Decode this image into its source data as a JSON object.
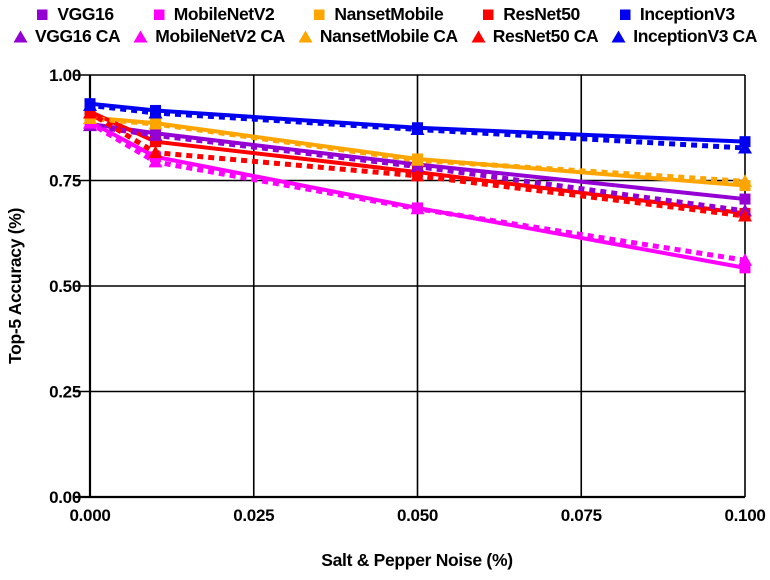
{
  "chart_data": {
    "type": "line",
    "title": "",
    "xlabel": "Salt & Pepper Noise (%)",
    "ylabel": "Top-5 Accuracy  (%)",
    "x": [
      0.0,
      0.01,
      0.05,
      0.1
    ],
    "xlim": [
      0.0,
      0.1
    ],
    "ylim": [
      0.0,
      1.0
    ],
    "x_tick_labels": [
      "0.000",
      "0.025",
      "0.050",
      "0.075",
      "0.100"
    ],
    "x_tick_values": [
      0.0,
      0.025,
      0.05,
      0.075,
      0.1
    ],
    "y_tick_labels": [
      "0.00",
      "0.25",
      "0.50",
      "0.75",
      "1.00"
    ],
    "y_tick_values": [
      0.0,
      0.25,
      0.5,
      0.75,
      1.0
    ],
    "grid": true,
    "grid_color": "#000000",
    "background_color": "#ffffff",
    "legend_position": "top",
    "legend_rows": [
      [
        0,
        1,
        2,
        3,
        4
      ],
      [
        5,
        6,
        7,
        8,
        9
      ]
    ],
    "series": [
      {
        "name": "VGG16",
        "color": "#9400D3",
        "marker": "square",
        "line": "solid",
        "values": [
          0.884,
          0.862,
          0.788,
          0.706
        ]
      },
      {
        "name": "MobileNetV2",
        "color": "#FF00FF",
        "marker": "square",
        "line": "solid",
        "values": [
          0.889,
          0.806,
          0.685,
          0.543
        ]
      },
      {
        "name": "NansetMobile",
        "color": "#FFA500",
        "marker": "square",
        "line": "solid",
        "values": [
          0.899,
          0.886,
          0.801,
          0.738
        ]
      },
      {
        "name": "ResNet50",
        "color": "#FF0000",
        "marker": "square",
        "line": "solid",
        "values": [
          0.913,
          0.842,
          0.77,
          0.672
        ]
      },
      {
        "name": "InceptionV3",
        "color": "#0000F0",
        "marker": "square",
        "line": "solid",
        "values": [
          0.932,
          0.916,
          0.875,
          0.842
        ]
      },
      {
        "name": "VGG16 CA",
        "color": "#9400D3",
        "marker": "triangle",
        "line": "dotted",
        "values": [
          0.88,
          0.857,
          0.783,
          0.678
        ]
      },
      {
        "name": "MobileNetV2 CA",
        "color": "#FF00FF",
        "marker": "triangle",
        "line": "dotted",
        "values": [
          0.886,
          0.794,
          0.683,
          0.561
        ]
      },
      {
        "name": "NansetMobile CA",
        "color": "#FFA500",
        "marker": "triangle",
        "line": "dotted",
        "values": [
          0.897,
          0.884,
          0.798,
          0.748
        ]
      },
      {
        "name": "ResNet50 CA",
        "color": "#FF0000",
        "marker": "triangle",
        "line": "dotted",
        "values": [
          0.91,
          0.816,
          0.761,
          0.666
        ]
      },
      {
        "name": "InceptionV3 CA",
        "color": "#0000F0",
        "marker": "triangle",
        "line": "dotted",
        "values": [
          0.928,
          0.91,
          0.871,
          0.827
        ]
      }
    ]
  }
}
